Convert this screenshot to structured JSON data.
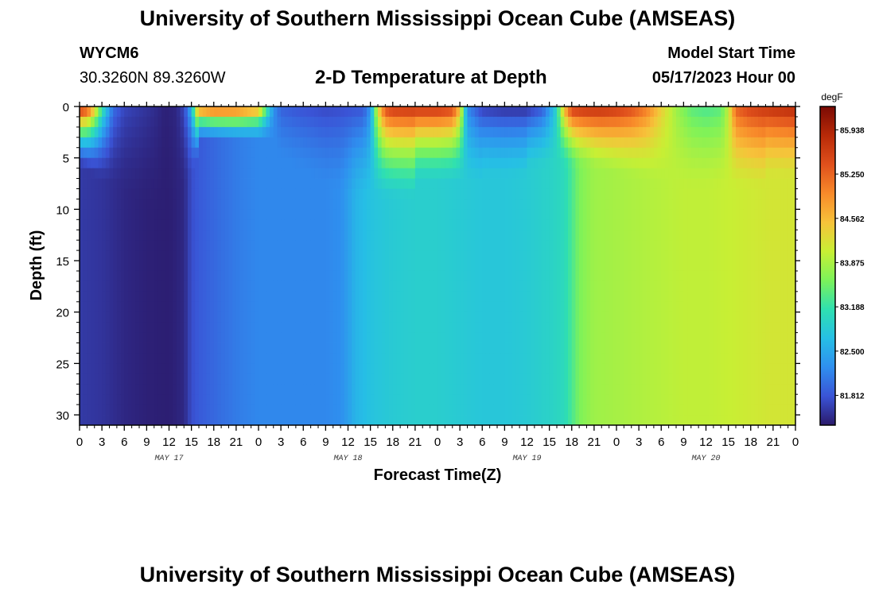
{
  "header": {
    "title": "University of Southern Mississippi Ocean Cube (AMSEAS)",
    "station_id": "WYCM6",
    "station_coords": "30.3260N  89.3260W",
    "plot_title": "2-D Temperature at Depth",
    "model_start_label": "Model Start Time",
    "model_start_value": "05/17/2023 Hour 00"
  },
  "footer": {
    "title": "University of Southern Mississippi Ocean Cube (AMSEAS)"
  },
  "colors": {
    "colormap": [
      "#2b1a6b",
      "#3a54d6",
      "#2f8fef",
      "#26bfe5",
      "#2fe0b0",
      "#7cf25a",
      "#c8ef34",
      "#f7c23a",
      "#f88a2a",
      "#e0501c",
      "#b82a08",
      "#7a0a04"
    ]
  },
  "chart_data": {
    "type": "heatmap",
    "xlabel": "Forecast Time(Z)",
    "ylabel": "Depth (ft)",
    "x_tick_labels": [
      "0",
      "3",
      "6",
      "9",
      "12",
      "15",
      "18",
      "21",
      "0",
      "3",
      "6",
      "9",
      "12",
      "15",
      "18",
      "21",
      "0",
      "3",
      "6",
      "9",
      "12",
      "15",
      "18",
      "21",
      "0",
      "3",
      "6",
      "9",
      "12",
      "15",
      "18",
      "21",
      "0"
    ],
    "x_range_hours": [
      0,
      96
    ],
    "date_labels": [
      {
        "label": "MAY 17",
        "hour": 12
      },
      {
        "label": "MAY 18",
        "hour": 36
      },
      {
        "label": "MAY 19",
        "hour": 60
      },
      {
        "label": "MAY 20",
        "hour": 84
      }
    ],
    "y_ticks": [
      0,
      5,
      10,
      15,
      20,
      25,
      30
    ],
    "y_tick_labels": [
      "0",
      "5",
      "10",
      "15",
      "20",
      "25",
      "30"
    ],
    "ylim": [
      0,
      31
    ],
    "y_inverted": true,
    "colorbar": {
      "unit": "degF",
      "min": 81.35,
      "max": 86.3,
      "tick_labels": [
        "85.938",
        "85.250",
        "84.562",
        "83.875",
        "83.188",
        "82.500",
        "81.812"
      ],
      "tick_values": [
        85.938,
        85.25,
        84.562,
        83.875,
        83.188,
        82.5,
        81.812
      ]
    },
    "deep_profile": {
      "hours": [
        0,
        3,
        6,
        9,
        12,
        14,
        15,
        16,
        18,
        21,
        24,
        27,
        30,
        33,
        35,
        36,
        37,
        39,
        42,
        45,
        48,
        51,
        54,
        57,
        60,
        63,
        65,
        66,
        67,
        69,
        72,
        75,
        78,
        81,
        84,
        87,
        90,
        93,
        96
      ],
      "degF": [
        81.6,
        81.55,
        81.45,
        81.4,
        81.38,
        81.45,
        81.75,
        81.85,
        81.95,
        82.1,
        82.2,
        82.2,
        82.2,
        82.2,
        82.25,
        82.4,
        82.6,
        82.75,
        82.85,
        82.9,
        82.9,
        82.85,
        82.8,
        82.8,
        82.85,
        82.95,
        83.05,
        83.3,
        83.6,
        83.8,
        83.85,
        83.9,
        83.95,
        84.0,
        84.0,
        84.05,
        84.1,
        84.15,
        84.15
      ]
    },
    "surface_profile": {
      "hours": [
        0,
        1,
        2,
        3,
        4.5,
        6,
        8,
        10,
        11.5,
        13,
        14,
        15,
        16,
        18,
        21,
        24,
        25,
        26,
        27,
        29,
        31,
        33,
        36,
        38,
        39,
        40,
        41,
        42,
        45,
        48,
        50,
        51,
        51.5,
        52,
        54,
        57,
        60,
        62,
        63,
        64,
        65,
        66,
        68,
        70,
        72,
        74,
        76,
        78,
        80,
        82,
        84,
        86,
        87,
        88,
        90,
        93,
        96
      ],
      "degF": [
        85.9,
        85.6,
        84.6,
        83.3,
        82.0,
        81.7,
        81.6,
        81.5,
        81.4,
        81.45,
        81.7,
        82.6,
        85.3,
        85.6,
        85.5,
        85.0,
        83.5,
        82.3,
        81.9,
        81.8,
        81.75,
        81.7,
        81.75,
        81.8,
        82.3,
        84.3,
        85.5,
        85.7,
        85.75,
        85.75,
        85.6,
        84.6,
        83.3,
        82.2,
        81.6,
        81.5,
        81.5,
        81.8,
        82.3,
        83.0,
        84.7,
        85.7,
        85.8,
        85.8,
        85.7,
        85.5,
        85.1,
        84.4,
        83.8,
        83.4,
        83.3,
        83.4,
        84.0,
        85.3,
        85.6,
        85.8,
        85.9
      ]
    }
  }
}
